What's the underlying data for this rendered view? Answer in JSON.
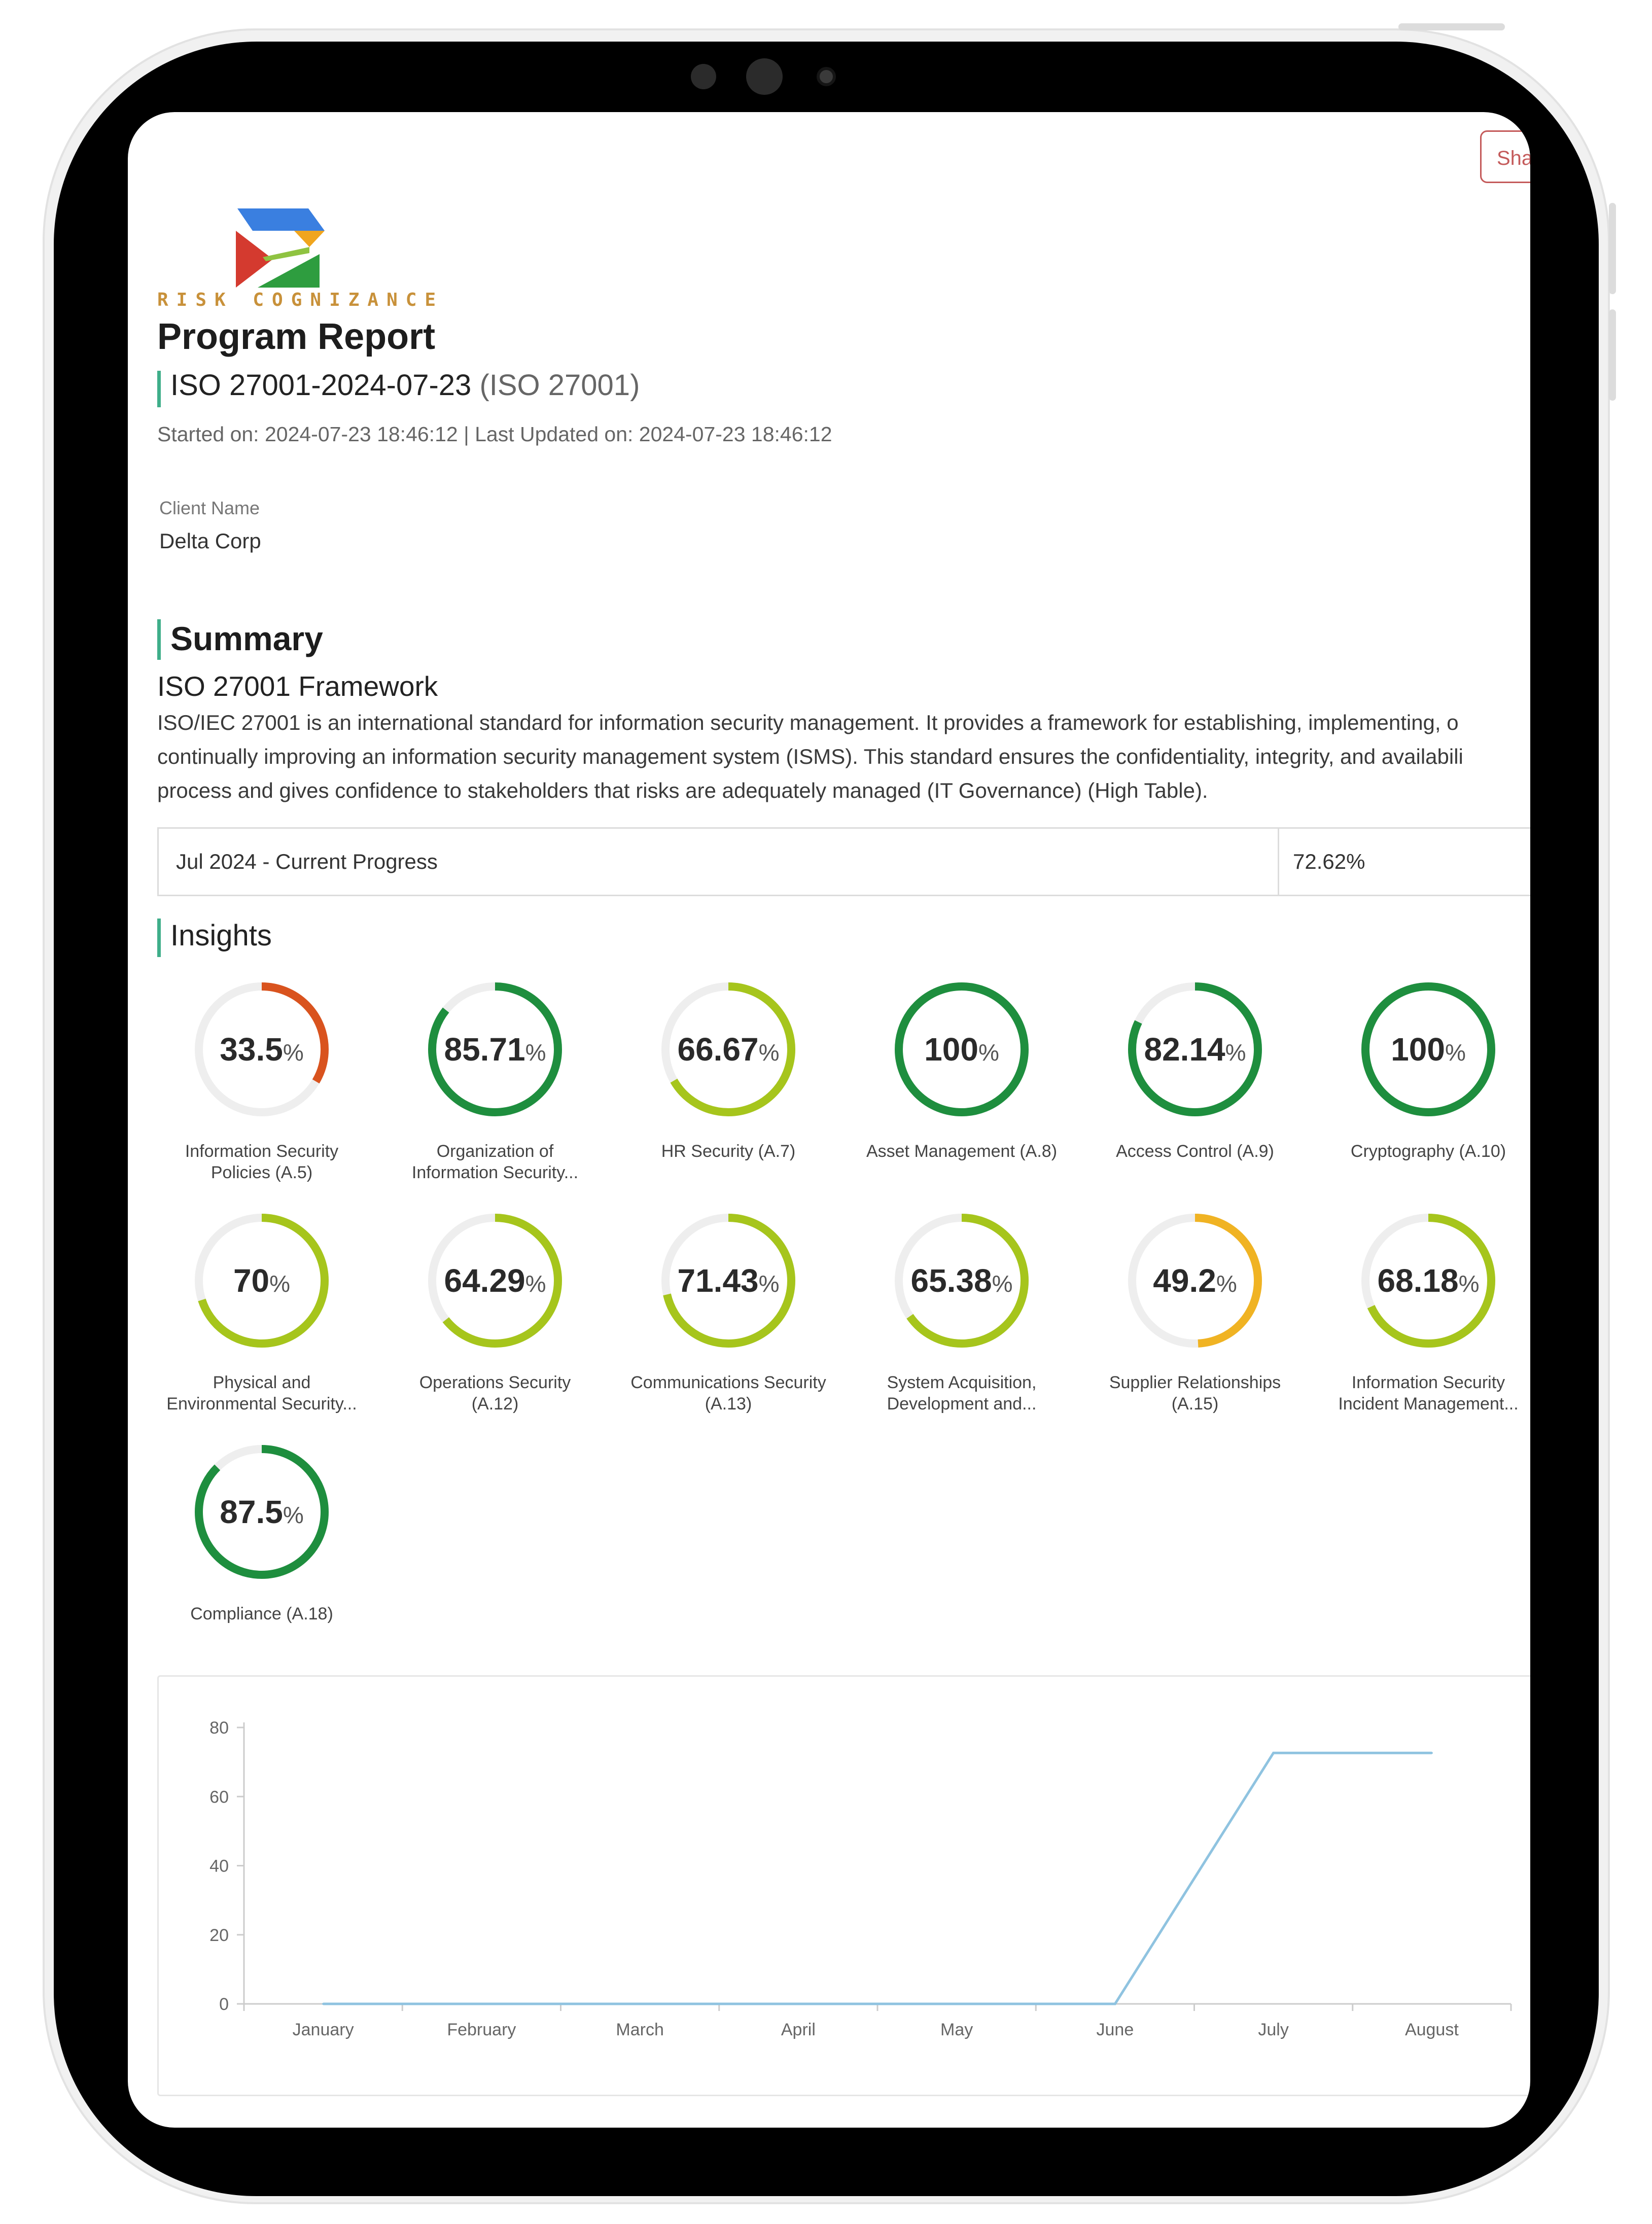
{
  "header": {
    "share_label": "Sha",
    "logo_text": "RISK COGNIZANCE",
    "page_title": "Program Report",
    "program_name": "ISO 27001-2024-07-23",
    "program_standard": "(ISO 27001)",
    "dates": "Started on: 2024-07-23 18:46:12 | Last Updated on: 2024-07-23 18:46:12"
  },
  "client": {
    "label": "Client Name",
    "value": "Delta Corp"
  },
  "summary": {
    "heading": "Summary",
    "framework_title": "ISO 27001 Framework",
    "description_lines": [
      "ISO/IEC 27001 is an international standard for information security management. It provides a framework for establishing, implementing, o",
      "continually improving an information security management system (ISMS). This standard ensures the confidentiality, integrity, and availabili",
      "process and gives confidence to stakeholders that risks are adequately managed (IT Governance) (High Table)."
    ],
    "progress_label": "Jul 2024 - Current Progress",
    "progress_value": "72.62%"
  },
  "insights": {
    "heading": "Insights",
    "gauges": [
      {
        "value": "33.5",
        "pct": 33.5,
        "color": "#d9531e",
        "label1": "Information Security",
        "label2": "Policies (A.5)"
      },
      {
        "value": "85.71",
        "pct": 85.71,
        "color": "#1e8e3e",
        "label1": "Organization of",
        "label2": "Information Security..."
      },
      {
        "value": "66.67",
        "pct": 66.67,
        "color": "#a6c51c",
        "label1": "HR Security (A.7)",
        "label2": ""
      },
      {
        "value": "100",
        "pct": 100,
        "color": "#1e8e3e",
        "label1": "Asset Management (A.8)",
        "label2": ""
      },
      {
        "value": "82.14",
        "pct": 82.14,
        "color": "#1e8e3e",
        "label1": "Access Control (A.9)",
        "label2": ""
      },
      {
        "value": "100",
        "pct": 100,
        "color": "#1e8e3e",
        "label1": "Cryptography (A.10)",
        "label2": ""
      },
      {
        "value": "70",
        "pct": 70,
        "color": "#a6c51c",
        "label1": "Physical and",
        "label2": "Environmental Security..."
      },
      {
        "value": "64.29",
        "pct": 64.29,
        "color": "#a6c51c",
        "label1": "Operations Security",
        "label2": "(A.12)"
      },
      {
        "value": "71.43",
        "pct": 71.43,
        "color": "#a6c51c",
        "label1": "Communications Security",
        "label2": "(A.13)"
      },
      {
        "value": "65.38",
        "pct": 65.38,
        "color": "#a6c51c",
        "label1": "System Acquisition,",
        "label2": "Development and..."
      },
      {
        "value": "49.2",
        "pct": 49.2,
        "color": "#f0b323",
        "label1": "Supplier Relationships",
        "label2": "(A.15)"
      },
      {
        "value": "68.18",
        "pct": 68.18,
        "color": "#a6c51c",
        "label1": "Information Security",
        "label2": "Incident Management..."
      },
      {
        "value": "87.5",
        "pct": 87.5,
        "color": "#1e8e3e",
        "label1": "Compliance (A.18)",
        "label2": ""
      }
    ],
    "pct_symbol": "%"
  },
  "chart_data": {
    "type": "line",
    "categories": [
      "January",
      "February",
      "March",
      "April",
      "May",
      "June",
      "July",
      "August"
    ],
    "series": [
      {
        "values": [
          0,
          0,
          0,
          0,
          0,
          0,
          72.62,
          72.62
        ]
      }
    ],
    "ylim": [
      0,
      80
    ],
    "yticks": [
      0,
      20,
      40,
      60,
      80
    ],
    "line_color": "#8fc3e0",
    "grid": false
  }
}
